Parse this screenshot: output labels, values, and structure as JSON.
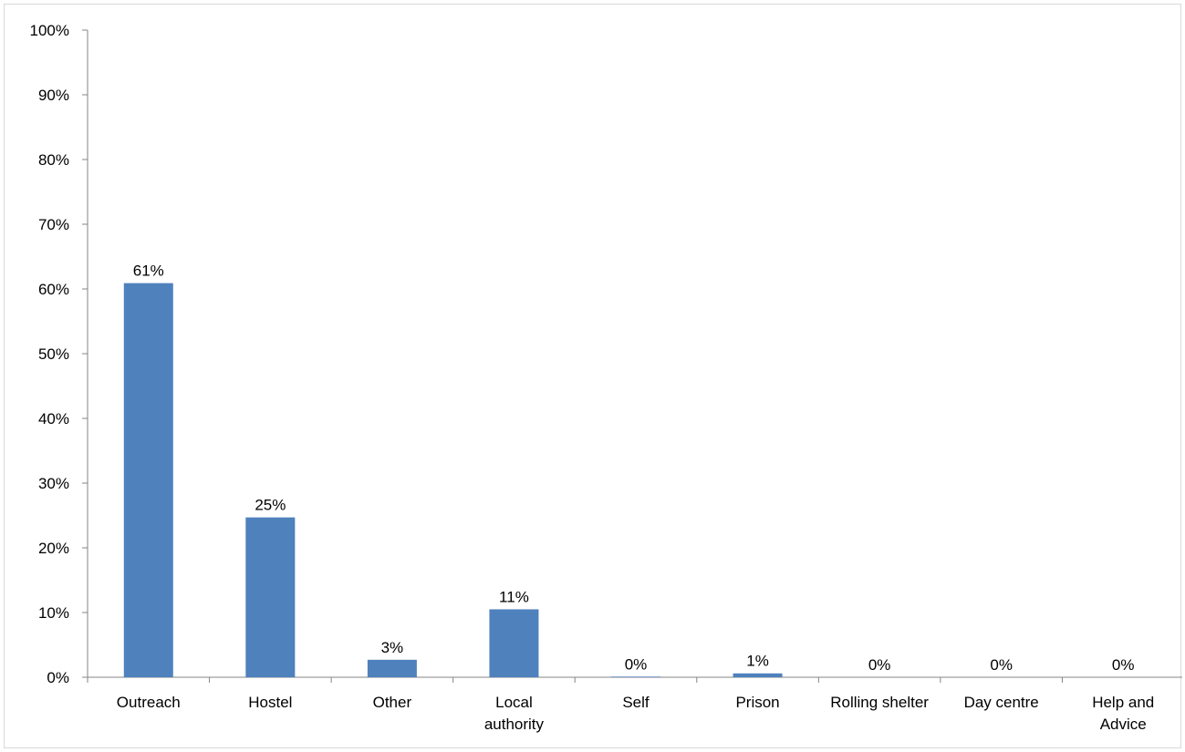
{
  "chart_data": {
    "type": "bar",
    "categories": [
      "Outreach",
      "Hostel",
      "Other",
      "Local authority",
      "Self",
      "Prison",
      "Rolling shelter",
      "Day centre",
      "Help and Advice"
    ],
    "category_display": [
      [
        "Outreach"
      ],
      [
        "Hostel"
      ],
      [
        "Other"
      ],
      [
        "Local",
        "authority"
      ],
      [
        "Self"
      ],
      [
        "Prison"
      ],
      [
        "Rolling shelter"
      ],
      [
        "Day centre"
      ],
      [
        "Help and",
        "Advice"
      ]
    ],
    "values": [
      61,
      25,
      3,
      11,
      0,
      1,
      0,
      0,
      0
    ],
    "bar_values": [
      60.9,
      24.7,
      2.7,
      10.5,
      0.1,
      0.6,
      0,
      0,
      0
    ],
    "data_labels": [
      "61%",
      "25%",
      "3%",
      "11%",
      "0%",
      "1%",
      "0%",
      "0%",
      "0%"
    ],
    "yticks": [
      "0%",
      "10%",
      "20%",
      "30%",
      "40%",
      "50%",
      "60%",
      "70%",
      "80%",
      "90%",
      "100%"
    ],
    "title": "",
    "xlabel": "",
    "ylabel": "",
    "ylim": [
      0,
      100
    ],
    "grid": false,
    "legend": "none",
    "bar_color": "#4f81bd",
    "axis_color": "#868686"
  }
}
